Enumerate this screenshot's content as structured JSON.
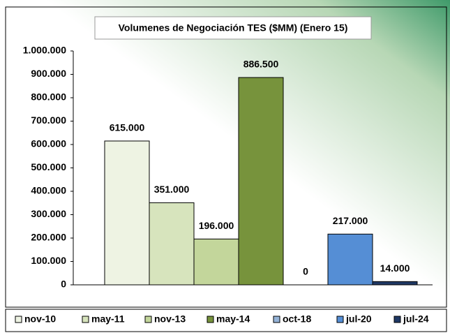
{
  "chart_data": {
    "type": "bar",
    "title": "Volumenes de Negociación TES ($MM) (Enero 15)",
    "categories": [
      "nov-10",
      "may-11",
      "nov-13",
      "may-14",
      "oct-18",
      "jul-20",
      "jul-24"
    ],
    "values": [
      615000,
      351000,
      196000,
      886500,
      0,
      217000,
      14000
    ],
    "value_labels": [
      "615.000",
      "351.000",
      "196.000",
      "886.500",
      "0",
      "217.000",
      "14.000"
    ],
    "colors": [
      "#eef3e3",
      "#d7e4bd",
      "#c3d69b",
      "#77933c",
      "#95b3d7",
      "#558ed5",
      "#1f3864"
    ],
    "ylim": [
      0,
      1000000
    ],
    "yticks": [
      0,
      {
        "value": 100000,
        "label": "100.000"
      },
      {
        "value": 200000,
        "label": "200.000"
      },
      {
        "value": 300000,
        "label": "300.000"
      },
      {
        "value": 400000,
        "label": "400.000"
      },
      {
        "value": 500000,
        "label": "500.000"
      },
      {
        "value": 600000,
        "label": "600.000"
      },
      {
        "value": 700000,
        "label": "700.000"
      },
      {
        "value": 800000,
        "label": "800.000"
      },
      {
        "value": 900000,
        "label": "900.000"
      },
      {
        "value": 1000000,
        "label": "1.000.000"
      }
    ],
    "legend": "bottom"
  }
}
